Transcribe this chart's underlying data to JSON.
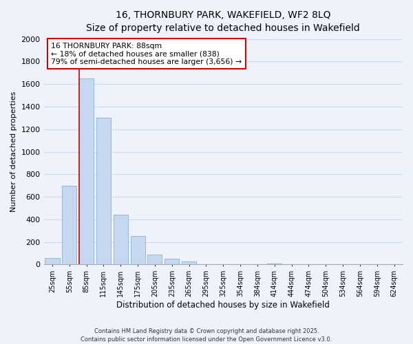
{
  "title_line1": "16, THORNBURY PARK, WAKEFIELD, WF2 8LQ",
  "title_line2": "Size of property relative to detached houses in Wakefield",
  "xlabel": "Distribution of detached houses by size in Wakefield",
  "ylabel": "Number of detached properties",
  "bar_labels": [
    "25sqm",
    "55sqm",
    "85sqm",
    "115sqm",
    "145sqm",
    "175sqm",
    "205sqm",
    "235sqm",
    "265sqm",
    "295sqm",
    "325sqm",
    "354sqm",
    "384sqm",
    "414sqm",
    "444sqm",
    "474sqm",
    "504sqm",
    "534sqm",
    "564sqm",
    "594sqm",
    "624sqm"
  ],
  "bar_values": [
    60,
    700,
    1650,
    1300,
    440,
    250,
    85,
    50,
    25,
    0,
    0,
    0,
    0,
    10,
    0,
    0,
    0,
    0,
    0,
    0,
    0
  ],
  "bar_color": "#c5d8f0",
  "bar_edge_color": "#8ab0d8",
  "property_line_bar_index": 2,
  "annotation_title": "16 THORNBURY PARK: 88sqm",
  "annotation_line2": "← 18% of detached houses are smaller (838)",
  "annotation_line3": "79% of semi-detached houses are larger (3,656) →",
  "annotation_box_color": "#ffffff",
  "annotation_box_edge": "#cc0000",
  "vline_color": "#cc0000",
  "ylim": [
    0,
    2000
  ],
  "yticks": [
    0,
    200,
    400,
    600,
    800,
    1000,
    1200,
    1400,
    1600,
    1800,
    2000
  ],
  "footer_line1": "Contains HM Land Registry data © Crown copyright and database right 2025.",
  "footer_line2": "Contains public sector information licensed under the Open Government Licence v3.0.",
  "background_color": "#eef2fb",
  "grid_color": "#d0d8ee",
  "title_fontsize": 10,
  "subtitle_fontsize": 9
}
